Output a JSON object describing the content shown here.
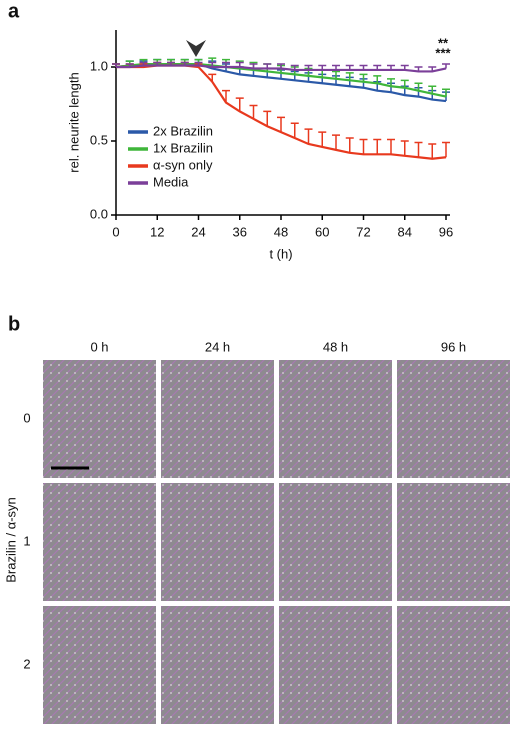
{
  "chart_data": {
    "type": "line",
    "xlabel": "t (h)",
    "ylabel": "rel. neurite length",
    "x": [
      0,
      4,
      8,
      12,
      16,
      20,
      24,
      28,
      32,
      36,
      40,
      44,
      48,
      52,
      56,
      60,
      64,
      68,
      72,
      76,
      80,
      84,
      88,
      92,
      96
    ],
    "xlim": [
      0,
      96
    ],
    "xticks": [
      0,
      12,
      24,
      36,
      48,
      60,
      72,
      84,
      96
    ],
    "ylim": [
      0,
      1.25
    ],
    "yticks": [
      {
        "value": 0,
        "label": "0.0"
      },
      {
        "value": 0.5,
        "label": "0.5"
      },
      {
        "value": 1,
        "label": "1.0"
      }
    ],
    "series": [
      {
        "name": "2x Brazilin",
        "color": "#2b59a8",
        "values": [
          1.0,
          1.01,
          1.01,
          1.02,
          1.02,
          1.02,
          1.02,
          0.99,
          0.97,
          0.95,
          0.94,
          0.93,
          0.92,
          0.91,
          0.9,
          0.89,
          0.88,
          0.87,
          0.86,
          0.84,
          0.83,
          0.81,
          0.8,
          0.78,
          0.77
        ],
        "errors": [
          0.02,
          0.03,
          0.03,
          0.03,
          0.03,
          0.03,
          0.03,
          0.05,
          0.05,
          0.05,
          0.05,
          0.06,
          0.06,
          0.06,
          0.06,
          0.06,
          0.06,
          0.06,
          0.06,
          0.06,
          0.06,
          0.06,
          0.06,
          0.06,
          0.06
        ]
      },
      {
        "name": "1x Brazilin",
        "color": "#3fb63a",
        "values": [
          1.0,
          1.01,
          1.02,
          1.02,
          1.02,
          1.02,
          1.02,
          1.01,
          1.0,
          0.99,
          0.98,
          0.97,
          0.96,
          0.95,
          0.94,
          0.93,
          0.92,
          0.91,
          0.9,
          0.89,
          0.87,
          0.86,
          0.84,
          0.82,
          0.8
        ],
        "errors": [
          0.02,
          0.03,
          0.03,
          0.03,
          0.03,
          0.03,
          0.03,
          0.05,
          0.05,
          0.05,
          0.05,
          0.05,
          0.05,
          0.05,
          0.05,
          0.05,
          0.05,
          0.05,
          0.05,
          0.05,
          0.05,
          0.05,
          0.05,
          0.05,
          0.05
        ]
      },
      {
        "name": "α-syn only",
        "color": "#e8391e",
        "values": [
          1.0,
          1.0,
          1.0,
          1.01,
          1.01,
          1.01,
          1.0,
          0.9,
          0.76,
          0.7,
          0.65,
          0.6,
          0.56,
          0.52,
          0.48,
          0.46,
          0.44,
          0.42,
          0.41,
          0.41,
          0.41,
          0.4,
          0.39,
          0.38,
          0.39
        ],
        "errors": [
          0.02,
          0.02,
          0.02,
          0.02,
          0.02,
          0.02,
          0.02,
          0.05,
          0.08,
          0.09,
          0.09,
          0.1,
          0.1,
          0.1,
          0.1,
          0.1,
          0.1,
          0.1,
          0.1,
          0.1,
          0.1,
          0.1,
          0.1,
          0.1,
          0.1
        ]
      },
      {
        "name": "Media",
        "color": "#7b3f99",
        "values": [
          1.0,
          1.0,
          1.01,
          1.01,
          1.01,
          1.01,
          1.01,
          1.0,
          1.0,
          1.0,
          0.99,
          0.99,
          0.99,
          0.98,
          0.98,
          0.98,
          0.98,
          0.98,
          0.98,
          0.98,
          0.98,
          0.98,
          0.97,
          0.97,
          0.99
        ],
        "errors": [
          0.02,
          0.02,
          0.02,
          0.02,
          0.02,
          0.02,
          0.02,
          0.03,
          0.03,
          0.03,
          0.03,
          0.03,
          0.03,
          0.03,
          0.03,
          0.03,
          0.03,
          0.03,
          0.03,
          0.03,
          0.03,
          0.03,
          0.03,
          0.03,
          0.03
        ]
      }
    ],
    "significance": [
      "**",
      "***"
    ],
    "significance_color": "#3fb63a"
  },
  "panels": [
    "a",
    "b"
  ],
  "images": {
    "columns": [
      "0 h",
      "24 h",
      "48 h",
      "96 h"
    ],
    "rows": [
      "0",
      "1",
      "2"
    ],
    "row_axis_label": "Brazilin / α-syn"
  }
}
